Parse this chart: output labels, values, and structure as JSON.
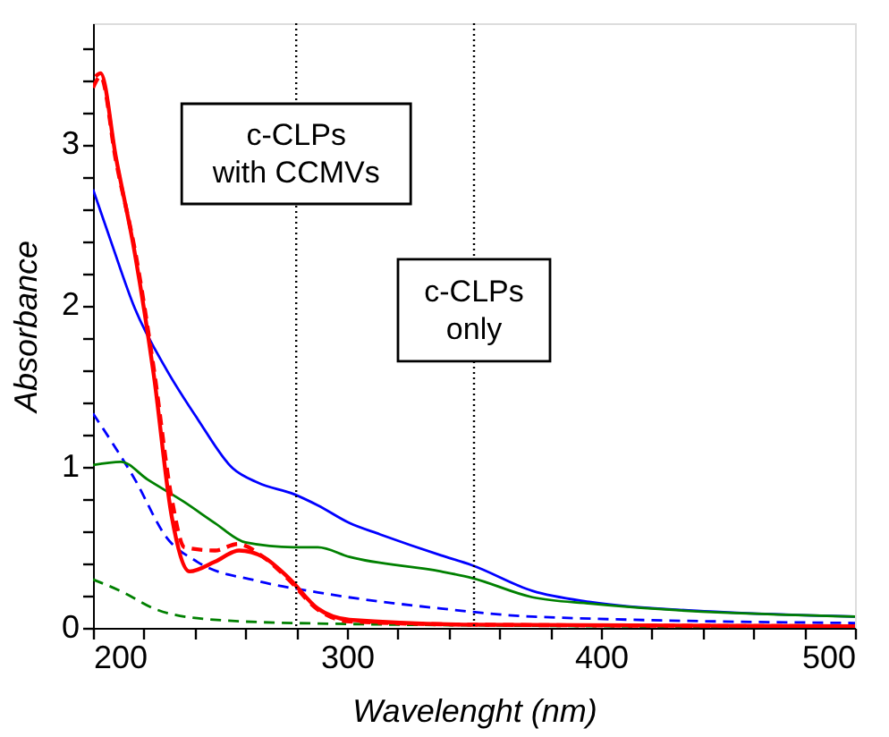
{
  "chart_data": {
    "type": "line",
    "xlabel": "Wavelenght (nm)",
    "ylabel": "Absorbance",
    "xlim": [
      200,
      500
    ],
    "ylim": [
      0,
      3.75
    ],
    "xticks": [
      200,
      {
        "value": 220,
        "label": null
      },
      {
        "value": 240,
        "label": null
      },
      {
        "value": 260,
        "label": null
      },
      {
        "value": 280,
        "label": null
      },
      300,
      {
        "value": 320,
        "label": null
      },
      {
        "value": 340,
        "label": null
      },
      {
        "value": 360,
        "label": null
      },
      {
        "value": 380,
        "label": null
      },
      400,
      {
        "value": 420,
        "label": null
      },
      {
        "value": 440,
        "label": null
      },
      {
        "value": 460,
        "label": null
      },
      {
        "value": 480,
        "label": null
      },
      500
    ],
    "yticks": [
      0,
      {
        "value": 0.2,
        "label": null
      },
      {
        "value": 0.4,
        "label": null
      },
      {
        "value": 0.6,
        "label": null
      },
      {
        "value": 0.8,
        "label": null
      },
      1,
      {
        "value": 1.2,
        "label": null
      },
      {
        "value": 1.4,
        "label": null
      },
      {
        "value": 1.6,
        "label": null
      },
      {
        "value": 1.8,
        "label": null
      },
      2,
      {
        "value": 2.2,
        "label": null
      },
      {
        "value": 2.4,
        "label": null
      },
      {
        "value": 2.6,
        "label": null
      },
      {
        "value": 2.8,
        "label": null
      },
      3,
      {
        "value": 3.2,
        "label": null
      },
      {
        "value": 3.4,
        "label": null
      },
      {
        "value": 3.6,
        "label": null
      }
    ],
    "grid": false,
    "marker": "none",
    "series": [
      {
        "color": "#0000ff",
        "line_style": "solid",
        "x": [
          200,
          207,
          216.5,
          229,
          241,
          255,
          265,
          279,
          288.5,
          301,
          313,
          337,
          349,
          373,
          396,
          445,
          500
        ],
        "values": [
          2.72,
          2.4,
          1.98,
          1.6,
          1.3,
          0.99,
          0.9,
          0.83,
          0.76,
          0.65,
          0.58,
          0.45,
          0.39,
          0.23,
          0.16,
          0.1,
          0.07
        ]
      },
      {
        "color": "#0000ff",
        "line_style": "dashed",
        "x": [
          200,
          216.5,
          229,
          241,
          265,
          288.5,
          337,
          373,
          500
        ],
        "values": [
          1.33,
          0.92,
          0.56,
          0.41,
          0.29,
          0.22,
          0.12,
          0.07,
          0.03
        ]
      },
      {
        "color": "#008000",
        "line_style": "solid",
        "x": [
          200,
          211,
          221.5,
          236,
          248,
          260,
          279,
          288.5,
          301,
          337,
          349,
          373,
          396,
          500
        ],
        "values": [
          1.01,
          1.03,
          0.92,
          0.78,
          0.65,
          0.53,
          0.5,
          0.5,
          0.44,
          0.35,
          0.31,
          0.19,
          0.15,
          0.07
        ]
      },
      {
        "color": "#008000",
        "line_style": "dashed",
        "x": [
          200,
          212,
          224,
          241,
          279,
          400,
          500
        ],
        "values": [
          0.3,
          0.22,
          0.12,
          0.06,
          0.03,
          0.01,
          0.0
        ]
      },
      {
        "color": "#ff0000",
        "line_style": "dashed",
        "x": [
          200,
          203,
          209,
          217,
          224,
          231,
          236,
          248,
          257,
          267,
          277,
          288,
          301,
          350,
          500
        ],
        "values": [
          3.35,
          3.42,
          2.9,
          2.3,
          1.6,
          0.8,
          0.5,
          0.48,
          0.52,
          0.44,
          0.3,
          0.12,
          0.04,
          0.02,
          0.01
        ]
      },
      {
        "color": "#ff0000",
        "line_style": "solid",
        "x": [
          201,
          203,
          209,
          216.5,
          224,
          231,
          238,
          248,
          257.5,
          267,
          277,
          288.5,
          301,
          350,
          500
        ],
        "values": [
          3.42,
          3.44,
          2.92,
          2.32,
          1.56,
          0.69,
          0.35,
          0.41,
          0.48,
          0.44,
          0.31,
          0.12,
          0.05,
          0.02,
          0.01
        ]
      }
    ],
    "ref_lines": [
      {
        "axis": "x",
        "value": 280,
        "color": "#000000",
        "line_style": "dotted"
      },
      {
        "axis": "x",
        "value": 350,
        "color": "#000000",
        "line_style": "dotted"
      }
    ],
    "annotations": [
      "c-CLPs\nwith CCMVs",
      "c-CLPs\nonly"
    ]
  }
}
